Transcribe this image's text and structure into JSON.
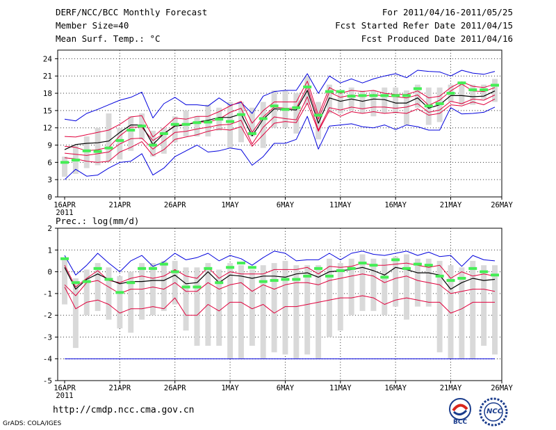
{
  "header": {
    "title": "DERF/NCC/BCC Monthly Forecast",
    "member_size": "Member Size=40",
    "variable": "Mean Surf. Temp.: °C",
    "period": "For 2011/04/16-2011/05/25",
    "started": "Fcst Started Refer Date 2011/04/15",
    "produced": "Fcst Produced Date 2011/04/16"
  },
  "footer": {
    "url": "http://cmdp.ncc.cma.gov.cn",
    "credit": "GrADS: COLA/IGES",
    "logo_left": "BCC",
    "logo_right": "NCC"
  },
  "colors": {
    "upper_envelope": "#0000dd",
    "lower_envelope": "#0000dd",
    "percentile_lines": "#e0003c",
    "ensemble_mean": "#000000",
    "observation_marks": "#44ee55",
    "spread_bars": "#d9d9d9",
    "grid": "#333333"
  },
  "chart_data": [
    {
      "type": "line",
      "title": "Mean Surf. Temp.: °C",
      "ylabel": "°C",
      "ylim": [
        0,
        25.5
      ],
      "yticks": [
        0,
        3,
        6,
        9,
        12,
        15,
        18,
        21,
        24
      ],
      "xlim": [
        0,
        39.5
      ],
      "xticks": [
        {
          "day": 0,
          "label": "16APR",
          "sub": "2011"
        },
        {
          "day": 5,
          "label": "21APR"
        },
        {
          "day": 10,
          "label": "26APR"
        },
        {
          "day": 15,
          "label": "1MAY"
        },
        {
          "day": 20,
          "label": "6MAY"
        },
        {
          "day": 25,
          "label": "11MAY"
        },
        {
          "day": 30,
          "label": "16MAY"
        },
        {
          "day": 35,
          "label": "21MAY"
        },
        {
          "day": 40,
          "label": "26MAY"
        }
      ],
      "series": [
        {
          "name": "max",
          "values": [
            13.5,
            13.2,
            14.5,
            15.2,
            16.0,
            16.8,
            17.3,
            18.2,
            13.7,
            16.2,
            17.3,
            16.0,
            16.0,
            15.8,
            17.2,
            15.9,
            16.4,
            14.5,
            17.5,
            18.3,
            18.5,
            18.5,
            21.4,
            18.0,
            21.0,
            19.8,
            20.5,
            19.8,
            20.5,
            21.0,
            21.4,
            20.7,
            22.0,
            21.8,
            21.7,
            21.0,
            22.0,
            21.5,
            21.3,
            21.8
          ]
        },
        {
          "name": "p90",
          "values": [
            10.5,
            10.4,
            10.8,
            11.2,
            11.6,
            12.6,
            13.9,
            14.1,
            10.4,
            12.0,
            13.7,
            13.5,
            14.0,
            14.0,
            14.8,
            15.8,
            16.6,
            12.8,
            15.0,
            16.5,
            16.5,
            16.5,
            20.1,
            14.2,
            19.0,
            18.0,
            18.5,
            18.3,
            18.5,
            18.0,
            17.8,
            17.8,
            18.4,
            17.2,
            17.5,
            19.0,
            20.0,
            19.2,
            19.0,
            19.6
          ]
        },
        {
          "name": "p75",
          "values": [
            8.8,
            8.6,
            8.0,
            8.2,
            8.6,
            10.6,
            12.1,
            12.1,
            9.8,
            11.0,
            12.4,
            12.6,
            13.0,
            13.0,
            13.5,
            14.7,
            15.4,
            11.2,
            13.9,
            15.6,
            15.4,
            15.4,
            19.2,
            13.5,
            18.2,
            17.3,
            17.7,
            17.4,
            17.8,
            17.5,
            17.4,
            17.2,
            17.7,
            15.9,
            16.8,
            18.4,
            19.6,
            18.4,
            18.3,
            19.0
          ]
        },
        {
          "name": "mean",
          "values": [
            8.2,
            9.1,
            9.3,
            9.4,
            9.7,
            11.2,
            12.5,
            12.5,
            9.1,
            11.0,
            12.3,
            12.5,
            13.0,
            13.3,
            13.8,
            13.8,
            14.4,
            10.6,
            13.5,
            15.3,
            15.2,
            15.1,
            18.5,
            12.8,
            17.2,
            16.6,
            17.0,
            16.6,
            17.0,
            16.9,
            16.3,
            16.3,
            17.2,
            15.4,
            16.0,
            17.6,
            17.6,
            17.4,
            17.5,
            18.4
          ]
        },
        {
          "name": "p25",
          "values": [
            7.6,
            7.4,
            7.2,
            7.5,
            7.8,
            9.2,
            10.1,
            10.2,
            8.3,
            9.7,
            11.2,
            11.4,
            11.8,
            12.1,
            12.5,
            12.6,
            13.3,
            9.2,
            12.1,
            13.9,
            13.6,
            13.4,
            17.4,
            11.6,
            15.5,
            15.1,
            15.6,
            15.3,
            15.6,
            15.6,
            15.4,
            15.6,
            16.2,
            14.7,
            15.1,
            16.6,
            16.2,
            17.0,
            16.8,
            17.7
          ]
        },
        {
          "name": "p10",
          "values": [
            6.8,
            6.6,
            6.2,
            6.0,
            6.2,
            7.8,
            8.6,
            9.6,
            7.2,
            8.2,
            10.0,
            10.4,
            10.8,
            11.4,
            11.8,
            11.6,
            12.2,
            8.8,
            10.8,
            12.8,
            13.1,
            12.9,
            16.3,
            11.4,
            15.0,
            14.0,
            14.8,
            14.5,
            14.8,
            14.5,
            14.7,
            14.5,
            15.3,
            14.2,
            14.5,
            16.0,
            15.8,
            16.5,
            16.0,
            17.0
          ]
        },
        {
          "name": "min",
          "values": [
            3.0,
            4.8,
            3.6,
            3.8,
            5.0,
            6.0,
            6.2,
            7.5,
            3.8,
            5.0,
            7.0,
            8.0,
            9.0,
            7.8,
            8.0,
            8.5,
            8.2,
            5.5,
            7.0,
            9.3,
            9.3,
            10.0,
            14.0,
            8.3,
            12.3,
            12.5,
            12.7,
            12.2,
            12.0,
            12.5,
            11.7,
            12.5,
            12.2,
            11.6,
            11.6,
            15.5,
            14.4,
            14.5,
            14.7,
            15.6
          ]
        },
        {
          "name": "spread_low",
          "values": [
            3.5,
            4.0,
            5.0,
            5.5,
            6.0,
            6.5,
            8.0,
            10.0,
            7.0,
            7.5,
            9.5,
            10.5,
            10.5,
            10.5,
            11.5,
            8.5,
            9.5,
            10.5,
            8.5,
            12.0,
            12.0,
            11.0,
            16.0,
            10.0,
            14.5,
            14.5,
            15.0,
            14.5,
            14.0,
            14.5,
            14.5,
            12.5,
            15.5,
            12.5,
            13.0,
            16.5,
            16.0,
            16.0,
            17.0,
            16.5
          ]
        },
        {
          "name": "spread_high",
          "values": [
            7.0,
            9.0,
            10.5,
            12.0,
            14.5,
            12.0,
            14.0,
            14.5,
            11.5,
            12.0,
            14.0,
            15.0,
            14.0,
            16.0,
            15.5,
            16.5,
            16.5,
            15.5,
            16.5,
            18.5,
            18.5,
            18.0,
            21.0,
            16.5,
            19.5,
            18.0,
            19.0,
            18.5,
            18.5,
            19.0,
            19.0,
            18.5,
            19.5,
            19.0,
            19.0,
            19.5,
            20.0,
            19.5,
            19.5,
            20.5
          ]
        },
        {
          "name": "observed",
          "values": [
            6.0,
            6.4,
            8.0,
            7.9,
            8.5,
            9.8,
            11.6,
            12.3,
            9.0,
            11.0,
            12.6,
            12.6,
            12.9,
            13.0,
            13.5,
            13.1,
            14.3,
            11.0,
            13.6,
            15.8,
            15.2,
            15.5,
            19.1,
            14.2,
            18.3,
            18.3,
            17.5,
            17.6,
            17.6,
            17.6,
            17.6,
            17.6,
            18.8,
            15.8,
            16.2,
            18.0,
            19.8,
            18.6,
            18.6,
            19.4
          ]
        }
      ]
    },
    {
      "type": "line",
      "title": "Prec.: log(mm/d)",
      "ylabel": "log(mm/d)",
      "ylim": [
        -5,
        2
      ],
      "yticks": [
        -5,
        -4,
        -3,
        -2,
        -1,
        0,
        1,
        2
      ],
      "xlim": [
        0,
        39.5
      ],
      "xticks": [
        {
          "day": 0,
          "label": "16APR",
          "sub": "2011"
        },
        {
          "day": 5,
          "label": "21APR"
        },
        {
          "day": 10,
          "label": "26APR"
        },
        {
          "day": 15,
          "label": "1MAY"
        },
        {
          "day": 20,
          "label": "6MAY"
        },
        {
          "day": 25,
          "label": "11MAY"
        },
        {
          "day": 30,
          "label": "16MAY"
        },
        {
          "day": 35,
          "label": "21MAY"
        },
        {
          "day": 40,
          "label": "26MAY"
        }
      ],
      "series": [
        {
          "name": "max",
          "values": [
            0.75,
            -0.15,
            0.3,
            0.85,
            0.4,
            0.0,
            0.5,
            0.75,
            0.25,
            0.45,
            0.85,
            0.55,
            0.65,
            0.85,
            0.5,
            0.75,
            0.6,
            0.3,
            0.65,
            0.95,
            0.85,
            0.5,
            0.55,
            0.55,
            0.85,
            0.55,
            0.85,
            0.95,
            0.8,
            0.75,
            0.85,
            0.95,
            0.75,
            0.9,
            0.7,
            0.75,
            0.25,
            0.75,
            0.55,
            0.5
          ]
        },
        {
          "name": "p90",
          "values": [
            0.3,
            -0.7,
            -0.3,
            0.05,
            -0.4,
            -0.5,
            -0.3,
            -0.2,
            -0.3,
            -0.2,
            0.1,
            -0.2,
            -0.3,
            0.2,
            -0.3,
            0.0,
            -0.1,
            -0.1,
            -0.1,
            0.1,
            0.1,
            0.1,
            0.2,
            -0.1,
            0.25,
            0.2,
            0.25,
            0.4,
            0.3,
            0.3,
            0.35,
            0.4,
            0.3,
            0.2,
            0.3,
            -0.3,
            0.0,
            -0.2,
            -0.1,
            -0.2
          ]
        },
        {
          "name": "mean",
          "values": [
            0.2,
            -0.8,
            -0.35,
            -0.1,
            -0.35,
            -0.55,
            -0.45,
            -0.45,
            -0.4,
            -0.4,
            -0.15,
            -0.55,
            -0.5,
            0.0,
            -0.5,
            -0.15,
            -0.2,
            -0.3,
            -0.2,
            -0.2,
            -0.25,
            -0.1,
            -0.05,
            -0.25,
            0.0,
            0.05,
            0.1,
            0.2,
            0.05,
            -0.15,
            0.2,
            0.1,
            -0.05,
            -0.05,
            -0.15,
            -0.8,
            -0.5,
            -0.3,
            -0.4,
            -0.35
          ]
        },
        {
          "name": "p25",
          "values": [
            -0.6,
            -1.1,
            -0.5,
            -0.4,
            -0.7,
            -1.0,
            -0.8,
            -0.8,
            -0.7,
            -0.8,
            -0.5,
            -0.9,
            -0.9,
            -0.5,
            -0.8,
            -0.6,
            -0.5,
            -0.9,
            -0.6,
            -0.8,
            -0.6,
            -0.5,
            -0.5,
            -0.6,
            -0.4,
            -0.3,
            -0.2,
            -0.1,
            -0.2,
            -0.5,
            -0.3,
            -0.2,
            -0.4,
            -0.5,
            -0.6,
            -1.0,
            -0.9,
            -0.8,
            -0.8,
            -0.9
          ]
        },
        {
          "name": "p10",
          "values": [
            -0.7,
            -1.7,
            -1.4,
            -1.3,
            -1.5,
            -1.9,
            -1.7,
            -1.7,
            -1.6,
            -1.7,
            -1.2,
            -2.0,
            -2.0,
            -1.5,
            -1.8,
            -1.4,
            -1.4,
            -1.7,
            -1.5,
            -1.9,
            -1.6,
            -1.6,
            -1.5,
            -1.4,
            -1.3,
            -1.2,
            -1.2,
            -1.1,
            -1.2,
            -1.5,
            -1.3,
            -1.2,
            -1.3,
            -1.4,
            -1.4,
            -1.9,
            -1.7,
            -1.4,
            -1.4,
            -1.4
          ]
        },
        {
          "name": "min",
          "values": [
            -4,
            -4,
            -4,
            -4,
            -4,
            -4,
            -4,
            -4,
            -4,
            -4,
            -4,
            -4,
            -4,
            -4,
            -4,
            -4,
            -4,
            -4,
            -4,
            -4,
            -4,
            -4,
            -4,
            -4,
            -4,
            -4,
            -4,
            -4,
            -4,
            -4,
            -4,
            -4,
            -4,
            -4,
            -4,
            -4,
            -4,
            -4,
            -4,
            -4
          ]
        },
        {
          "name": "spread_low",
          "values": [
            -1.5,
            -3.5,
            -2.0,
            -1.8,
            -2.2,
            -2.6,
            -2.8,
            -2.2,
            -2.0,
            -1.8,
            -1.5,
            -2.7,
            -3.4,
            -3.4,
            -3.4,
            -4.0,
            -4.0,
            -3.4,
            -4.0,
            -3.7,
            -3.8,
            -4.0,
            -3.8,
            -4.0,
            -3.0,
            -2.7,
            -2.0,
            -1.8,
            -1.8,
            -2.0,
            -1.6,
            -2.2,
            -1.6,
            -1.6,
            -3.7,
            -4.0,
            -4.0,
            -4.0,
            -3.4,
            -3.8
          ]
        },
        {
          "name": "spread_high",
          "values": [
            0.6,
            -0.3,
            0.1,
            0.4,
            0.2,
            -0.2,
            0.0,
            0.4,
            0.4,
            0.5,
            0.5,
            0.2,
            0.2,
            0.4,
            0.1,
            0.4,
            0.3,
            0.1,
            0.3,
            0.4,
            0.5,
            0.3,
            0.3,
            0.3,
            0.6,
            0.4,
            0.6,
            0.8,
            0.6,
            0.6,
            0.7,
            0.8,
            0.6,
            0.6,
            0.5,
            0.3,
            0.2,
            0.5,
            0.3,
            0.3
          ]
        },
        {
          "name": "observed",
          "values": [
            0.6,
            -0.5,
            -0.45,
            0.15,
            -0.35,
            -0.95,
            -0.5,
            0.15,
            0.15,
            0.35,
            0.0,
            -0.7,
            -0.7,
            0.15,
            -0.5,
            0.2,
            0.4,
            0.2,
            -0.45,
            -0.4,
            -0.35,
            -0.35,
            -0.2,
            0.15,
            -0.2,
            0.05,
            0.15,
            0.4,
            0.3,
            -0.25,
            0.55,
            0.15,
            0.35,
            0.3,
            -0.2,
            -0.4,
            -0.3,
            0.15,
            0.0,
            -0.15
          ]
        }
      ]
    }
  ]
}
